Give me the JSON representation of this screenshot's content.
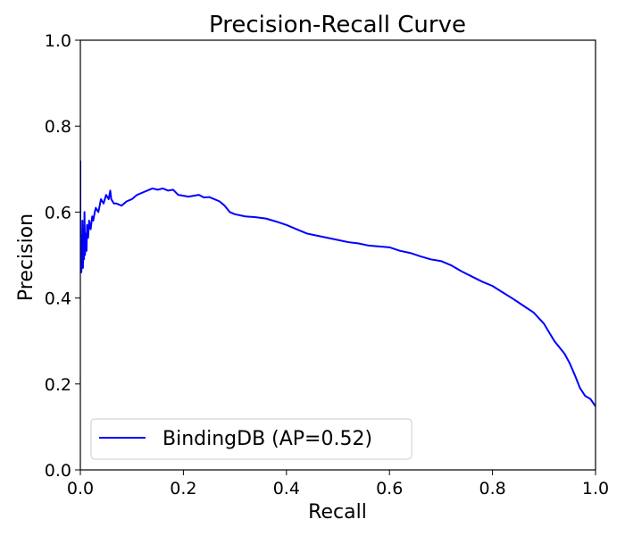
{
  "chart_data": {
    "type": "line",
    "title": "Precision-Recall Curve",
    "xlabel": "Recall",
    "ylabel": "Precision",
    "xlim": [
      0.0,
      1.0
    ],
    "ylim": [
      0.0,
      1.0
    ],
    "grid": false,
    "legend_position": "lower-left",
    "x_ticks": [
      "0.0",
      "0.2",
      "0.4",
      "0.6",
      "0.8",
      "1.0"
    ],
    "y_ticks": [
      "0.0",
      "0.2",
      "0.4",
      "0.6",
      "0.8",
      "1.0"
    ],
    "series": [
      {
        "name": "BindingDB (AP=0.52)",
        "color": "#0000ff",
        "x": [
          0.0,
          0.0,
          0.002,
          0.003,
          0.004,
          0.005,
          0.006,
          0.007,
          0.008,
          0.009,
          0.01,
          0.011,
          0.012,
          0.013,
          0.015,
          0.017,
          0.02,
          0.023,
          0.025,
          0.028,
          0.03,
          0.035,
          0.04,
          0.045,
          0.05,
          0.055,
          0.058,
          0.06,
          0.065,
          0.07,
          0.08,
          0.09,
          0.1,
          0.11,
          0.12,
          0.13,
          0.14,
          0.15,
          0.16,
          0.17,
          0.18,
          0.19,
          0.2,
          0.21,
          0.22,
          0.23,
          0.24,
          0.25,
          0.26,
          0.27,
          0.28,
          0.29,
          0.3,
          0.32,
          0.34,
          0.36,
          0.38,
          0.4,
          0.42,
          0.44,
          0.46,
          0.48,
          0.5,
          0.52,
          0.54,
          0.56,
          0.58,
          0.6,
          0.62,
          0.64,
          0.66,
          0.68,
          0.7,
          0.72,
          0.74,
          0.76,
          0.78,
          0.8,
          0.82,
          0.84,
          0.86,
          0.88,
          0.9,
          0.91,
          0.92,
          0.93,
          0.94,
          0.95,
          0.96,
          0.97,
          0.98,
          0.99,
          1.0
        ],
        "y": [
          0.72,
          0.55,
          0.46,
          0.5,
          0.58,
          0.47,
          0.55,
          0.49,
          0.6,
          0.5,
          0.53,
          0.55,
          0.51,
          0.57,
          0.54,
          0.58,
          0.56,
          0.59,
          0.58,
          0.6,
          0.61,
          0.6,
          0.63,
          0.62,
          0.64,
          0.63,
          0.65,
          0.63,
          0.62,
          0.62,
          0.615,
          0.625,
          0.63,
          0.64,
          0.645,
          0.65,
          0.655,
          0.652,
          0.655,
          0.65,
          0.652,
          0.64,
          0.638,
          0.636,
          0.638,
          0.64,
          0.634,
          0.635,
          0.63,
          0.625,
          0.615,
          0.6,
          0.595,
          0.59,
          0.588,
          0.585,
          0.578,
          0.57,
          0.56,
          0.55,
          0.545,
          0.54,
          0.535,
          0.53,
          0.527,
          0.522,
          0.52,
          0.518,
          0.51,
          0.505,
          0.497,
          0.49,
          0.486,
          0.476,
          0.462,
          0.45,
          0.438,
          0.428,
          0.413,
          0.398,
          0.382,
          0.366,
          0.34,
          0.32,
          0.3,
          0.285,
          0.27,
          0.248,
          0.22,
          0.19,
          0.172,
          0.165,
          0.148
        ]
      }
    ]
  }
}
